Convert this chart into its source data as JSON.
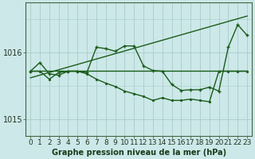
{
  "title": "Graphe pression niveau de la mer (hPa)",
  "bg_color": "#cce8e8",
  "grid_color": "#aacccc",
  "line_color": "#1a5c1a",
  "ylim": [
    1014.75,
    1016.75
  ],
  "xlim": [
    -0.5,
    23.5
  ],
  "yticks": [
    1015.0,
    1016.0
  ],
  "xticks": [
    0,
    1,
    2,
    3,
    4,
    5,
    6,
    7,
    8,
    9,
    10,
    11,
    12,
    13,
    14,
    15,
    16,
    17,
    18,
    19,
    20,
    21,
    22,
    23
  ],
  "trend_line": {
    "x": [
      0,
      23
    ],
    "y": [
      1015.62,
      1016.55
    ]
  },
  "flat_line": {
    "x": [
      0,
      23
    ],
    "y": [
      1015.73,
      1015.73
    ]
  },
  "zigzag_plus": {
    "x": [
      0,
      1,
      2,
      3,
      4,
      5,
      6,
      7,
      8,
      9,
      10,
      11,
      12,
      13,
      14,
      15,
      16,
      17,
      18,
      19,
      20,
      21,
      22,
      23
    ],
    "y": [
      1015.72,
      1015.85,
      1015.68,
      1015.66,
      1015.72,
      1015.72,
      1015.7,
      1016.08,
      1016.06,
      1016.02,
      1016.1,
      1016.1,
      1015.8,
      1015.73,
      1015.72,
      1015.52,
      1015.43,
      1015.44,
      1015.44,
      1015.48,
      1015.42,
      1016.08,
      1016.42,
      1016.26
    ]
  },
  "zigzag_dot": {
    "x": [
      0,
      1,
      2,
      3,
      4,
      5,
      6,
      7,
      8,
      9,
      10,
      11,
      12,
      13,
      14,
      15,
      16,
      17,
      18,
      19,
      20,
      21,
      22,
      23
    ],
    "y": [
      1015.72,
      1015.72,
      1015.6,
      1015.7,
      1015.72,
      1015.72,
      1015.68,
      1015.6,
      1015.54,
      1015.49,
      1015.42,
      1015.38,
      1015.34,
      1015.28,
      1015.32,
      1015.28,
      1015.28,
      1015.3,
      1015.28,
      1015.26,
      1015.72,
      1015.72,
      1015.72,
      1015.72
    ]
  },
  "label_fontsize": 7,
  "tick_fontsize": 6.5
}
